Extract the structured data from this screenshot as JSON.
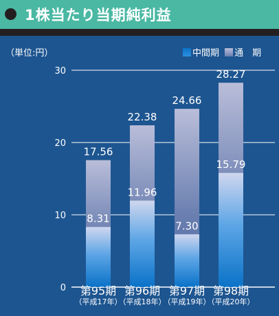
{
  "header": {
    "title": "1株当たり当期純利益"
  },
  "unit_label": "（単位:円）",
  "legend": [
    {
      "key": "interim",
      "label": "中間期"
    },
    {
      "key": "full",
      "label": "通　期"
    }
  ],
  "colors": {
    "background": "#1d5590",
    "header": "#4ab8a3",
    "header_bar": "#231f20",
    "full_bar_top": "#b9bdd9",
    "full_bar_bottom": "#4f6aa6",
    "interim_bar_top": "#cfd6ee",
    "interim_bar_bottom": "#0a72c8",
    "text": "#ffffff"
  },
  "chart_data": {
    "type": "bar",
    "categories": [
      "第95期",
      "第96期",
      "第97期",
      "第98期"
    ],
    "category_sublabels": [
      "（平成17年）",
      "（平成18年）",
      "（平成19年）",
      "（平成20年）"
    ],
    "series": [
      {
        "name": "通　期",
        "values": [
          17.56,
          22.38,
          24.66,
          28.27
        ]
      },
      {
        "name": "中間期",
        "values": [
          8.31,
          11.96,
          7.3,
          15.79
        ]
      }
    ],
    "value_labels": {
      "full": [
        "17.56",
        "22.38",
        "24.66",
        "28.27"
      ],
      "interim": [
        "8.31",
        "11.96",
        "7.30",
        "15.79"
      ]
    },
    "yticks": [
      "0",
      "10",
      "20",
      "30"
    ],
    "ylim": [
      0,
      30
    ],
    "grid": true,
    "legend_position": "top-right",
    "title": "1株当たり当期純利益",
    "xlabel": "",
    "ylabel": "（単位:円）"
  }
}
